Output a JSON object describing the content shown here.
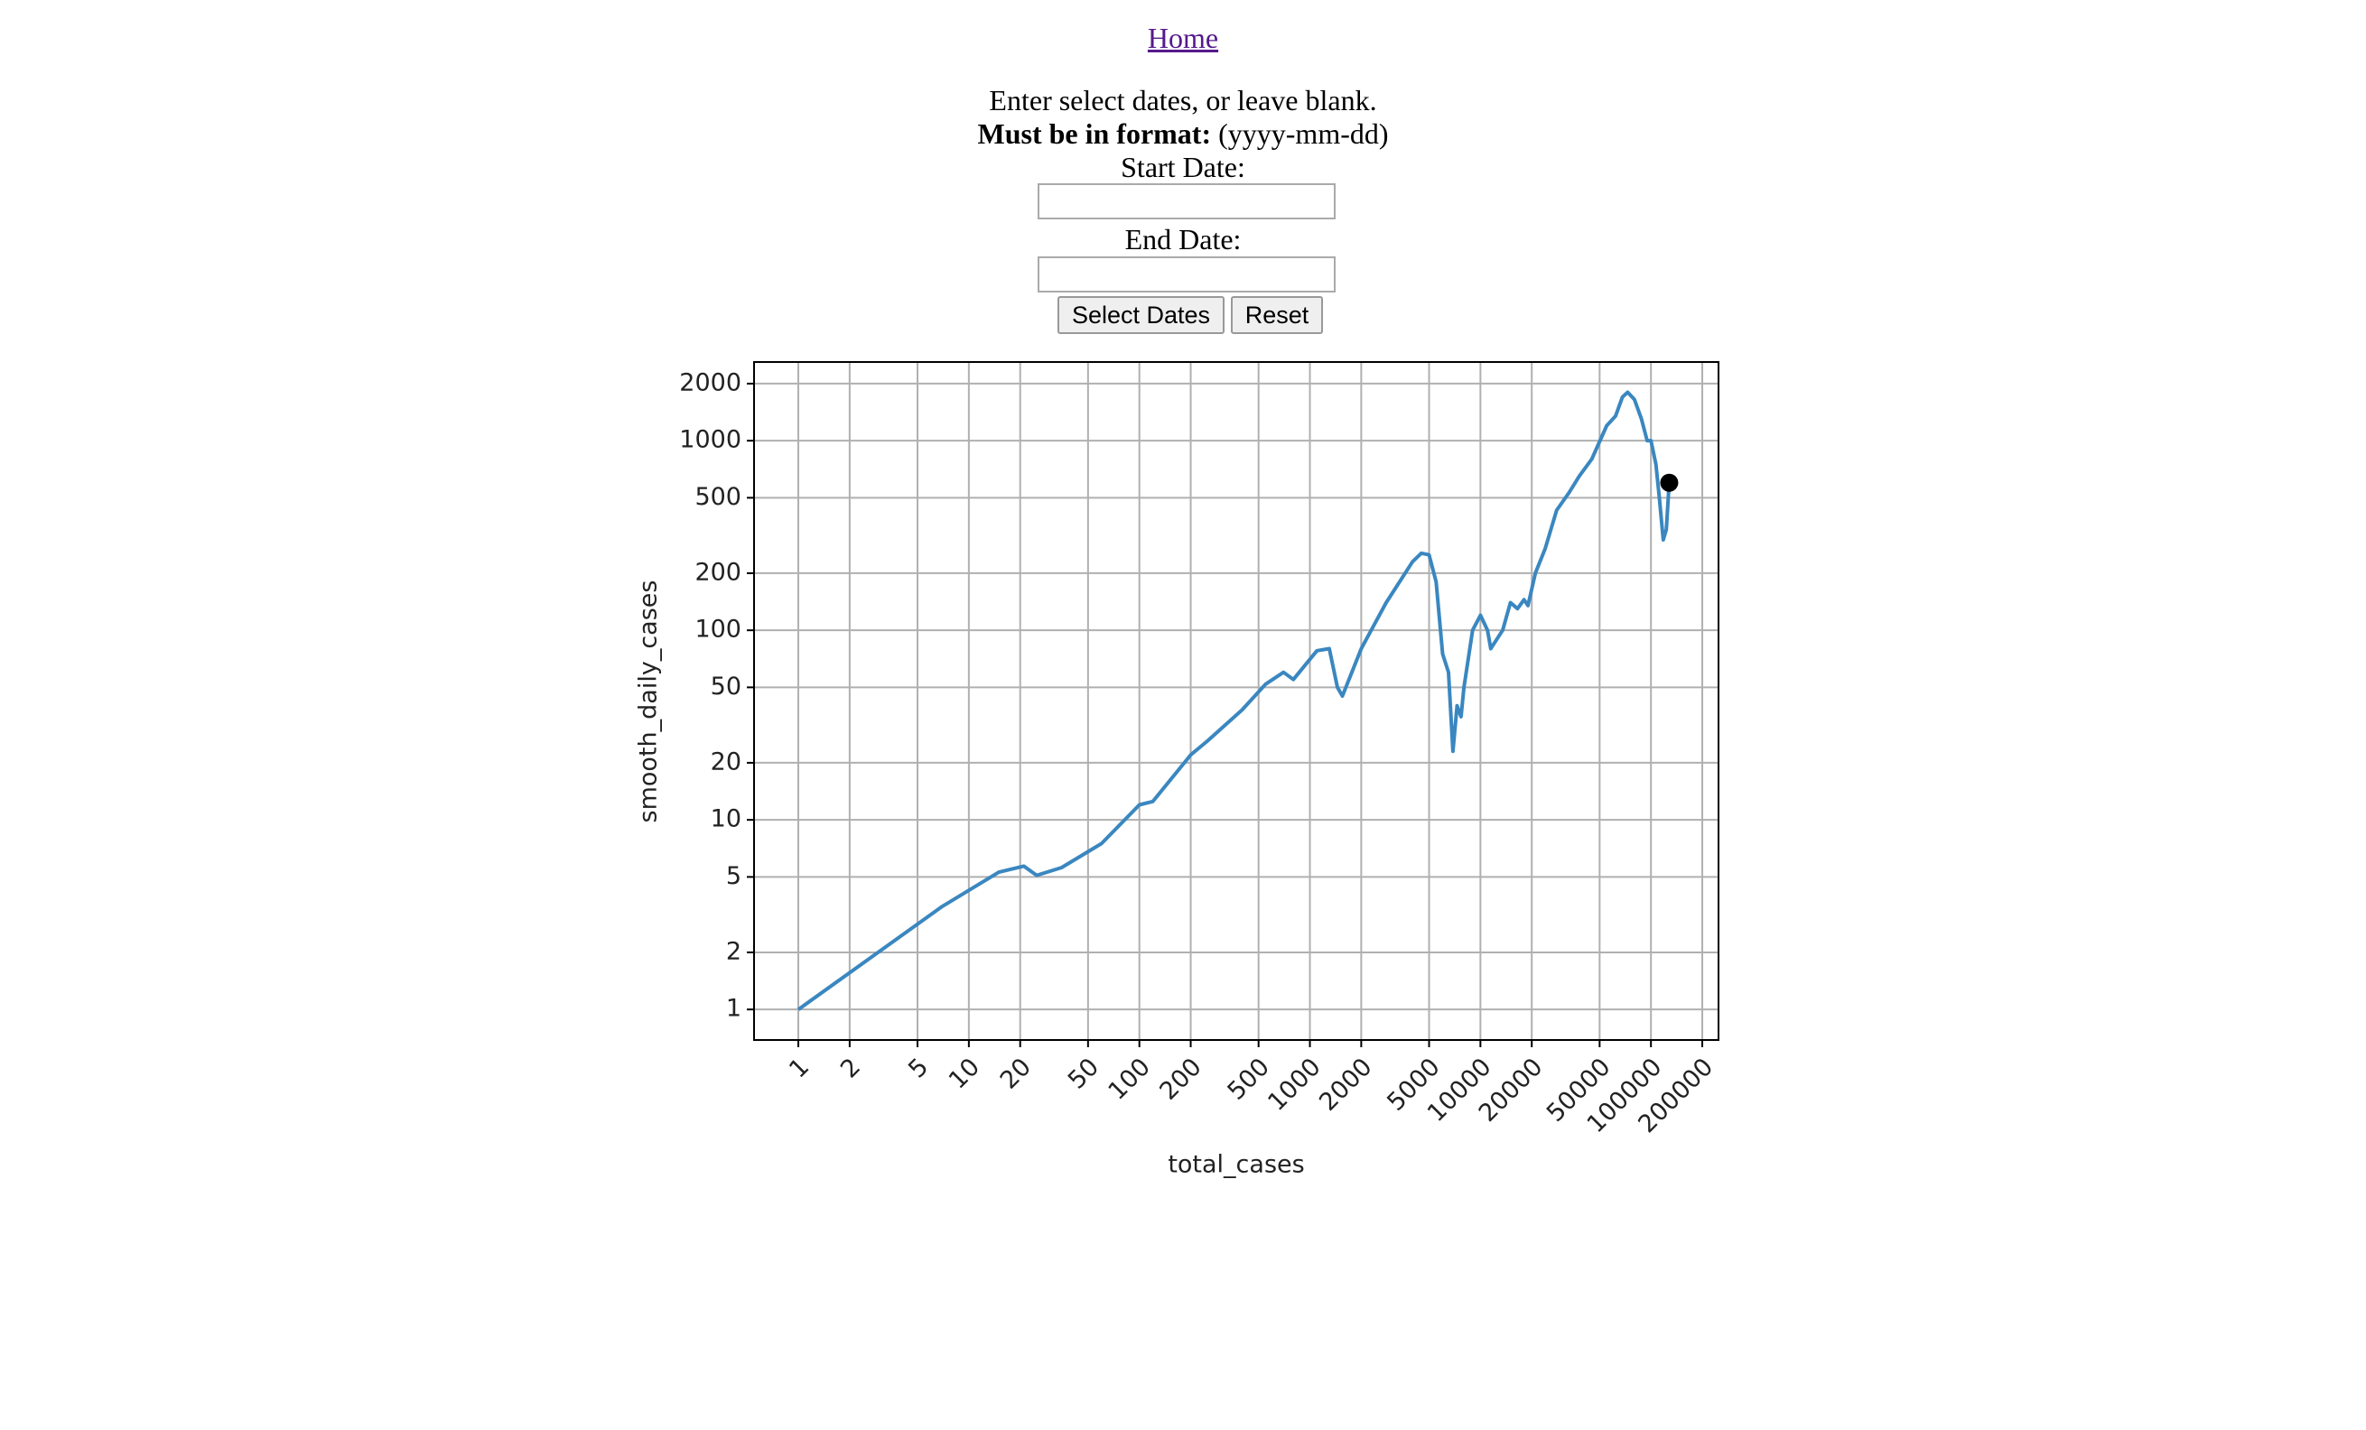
{
  "header": {
    "home_link": "Home"
  },
  "form": {
    "instructions": "Enter select dates, or leave blank.",
    "format_label": "Must be in format:",
    "format_value": "(yyyy-mm-dd)",
    "start_label": "Start Date:",
    "end_label": "End Date:",
    "submit_button": "Select Dates",
    "reset_button": "Reset"
  },
  "chart_data": {
    "type": "line",
    "xlabel": "total_cases",
    "ylabel": "smooth_daily_cases",
    "xscale": "log",
    "yscale": "log",
    "grid": true,
    "xlim": [
      0.55,
      249000
    ],
    "ylim": [
      0.69,
      2600
    ],
    "xticks": [
      1,
      2,
      5,
      10,
      20,
      50,
      100,
      200,
      500,
      1000,
      2000,
      5000,
      10000,
      20000,
      50000,
      100000,
      200000
    ],
    "yticks": [
      1,
      2,
      5,
      10,
      20,
      50,
      100,
      200,
      500,
      1000,
      2000
    ],
    "series": [
      {
        "color": "#3a87c0",
        "x": [
          1,
          7,
          15,
          21,
          25,
          35,
          60,
          100,
          120,
          200,
          250,
          400,
          550,
          700,
          800,
          1100,
          1300,
          1450,
          1550,
          2000,
          2800,
          4000,
          4500,
          5000,
          5500,
          6000,
          6500,
          6900,
          7300,
          7700,
          8000,
          9000,
          10000,
          11000,
          11500,
          13500,
          15000,
          16500,
          18000,
          19000,
          21000,
          24000,
          28000,
          33000,
          38000,
          45000,
          55000,
          62000,
          68000,
          73000,
          80000,
          88000,
          95000,
          100000,
          107000,
          112000,
          118000,
          123000,
          128000
        ],
        "values": [
          1,
          3.5,
          5.3,
          5.7,
          5.1,
          5.6,
          7.5,
          12,
          12.5,
          22,
          26,
          38,
          52,
          60,
          55,
          78,
          80,
          50,
          45,
          80,
          140,
          230,
          255,
          250,
          180,
          75,
          60,
          23,
          40,
          35,
          50,
          100,
          120,
          100,
          80,
          100,
          140,
          130,
          145,
          135,
          200,
          270,
          430,
          530,
          650,
          800,
          1200,
          1350,
          1700,
          1800,
          1650,
          1300,
          1000,
          1000,
          750,
          500,
          300,
          340,
          600
        ]
      }
    ],
    "last_point": {
      "x": 128000,
      "y": 600,
      "color": "#000000"
    }
  }
}
